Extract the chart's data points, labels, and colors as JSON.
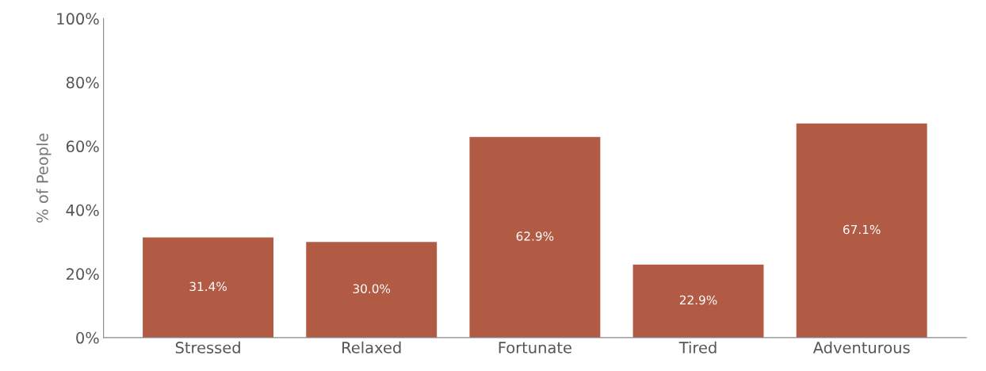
{
  "chart_data": {
    "type": "bar",
    "ylabel": "% of People",
    "categories": [
      "Stressed",
      "Relaxed",
      "Fortunate",
      "Tired",
      "Adventurous"
    ],
    "values": [
      31.4,
      30.0,
      62.9,
      22.9,
      67.1
    ],
    "value_labels": [
      "31.4%",
      "30.0%",
      "62.9%",
      "22.9%",
      "67.1%"
    ],
    "color": "#b15a44",
    "ylim": [
      0,
      100
    ],
    "yticks": [
      {
        "value": 0,
        "label": "0%"
      },
      {
        "value": 20,
        "label": "20%"
      },
      {
        "value": 40,
        "label": "40%"
      },
      {
        "value": 60,
        "label": "60%"
      },
      {
        "value": 80,
        "label": "80%"
      },
      {
        "value": 100,
        "label": "100%"
      }
    ],
    "grid": false
  }
}
